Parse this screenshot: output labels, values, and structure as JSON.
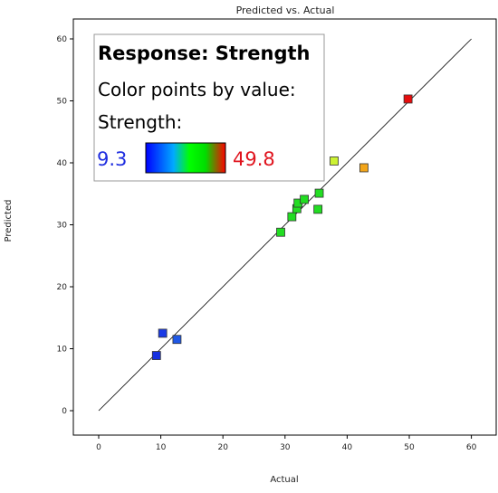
{
  "chart_data": {
    "type": "scatter",
    "title": "Predicted vs. Actual",
    "xlabel": "Actual",
    "ylabel": "Predicted",
    "xlim": [
      -4,
      64
    ],
    "ylim": [
      -4,
      64
    ],
    "xticks": [
      0,
      10,
      20,
      30,
      40,
      50,
      60
    ],
    "yticks": [
      0,
      10,
      20,
      30,
      40,
      50,
      60
    ],
    "grid": false,
    "reference_line": {
      "from": [
        0,
        0
      ],
      "to": [
        60,
        60
      ]
    },
    "legend": {
      "title": "Response: Strength",
      "line2": "Color points by value:",
      "line3": "Strength:",
      "min_label": "9.3",
      "max_label": "49.8",
      "placement": "top-left",
      "gradient_colors": [
        "#0000ff",
        "#00ff00",
        "#ff0000"
      ]
    },
    "points": [
      {
        "x": 9.3,
        "y": 8.9,
        "color": "#1530e0"
      },
      {
        "x": 10.3,
        "y": 12.5,
        "color": "#1a3ae6"
      },
      {
        "x": 12.6,
        "y": 11.5,
        "color": "#1f58e6"
      },
      {
        "x": 29.3,
        "y": 28.8,
        "color": "#22dd22"
      },
      {
        "x": 31.1,
        "y": 31.3,
        "color": "#22dd22"
      },
      {
        "x": 31.9,
        "y": 32.6,
        "color": "#22dd22"
      },
      {
        "x": 32.1,
        "y": 33.5,
        "color": "#22dd22"
      },
      {
        "x": 33.1,
        "y": 34.1,
        "color": "#22dd22"
      },
      {
        "x": 35.3,
        "y": 32.5,
        "color": "#22dd22"
      },
      {
        "x": 35.5,
        "y": 35.1,
        "color": "#22dd22"
      },
      {
        "x": 37.9,
        "y": 40.3,
        "color": "#ccf233"
      },
      {
        "x": 42.7,
        "y": 39.2,
        "color": "#f2a51a"
      },
      {
        "x": 49.8,
        "y": 50.3,
        "color": "#e60d0d"
      }
    ]
  }
}
